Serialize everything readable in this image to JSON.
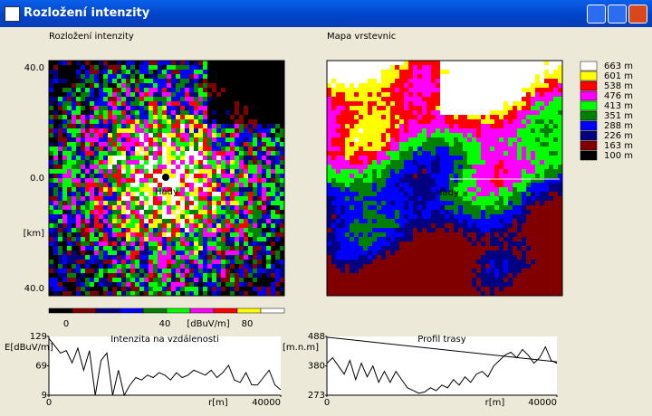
{
  "window": {
    "title": "Rozložení intenzity"
  },
  "intensity_map": {
    "title": "Rozložení intenzity",
    "y_labels": [
      "40.0",
      "0.0",
      "[km]",
      "40.0"
    ],
    "place": "Hády",
    "colorbar": {
      "colors": [
        "#000000",
        "#800000",
        "#000080",
        "#0000ff",
        "#008000",
        "#00ff00",
        "#ff00ff",
        "#ff0000",
        "#ffff00",
        "#ffffff"
      ],
      "labels": [
        "0",
        "40",
        "[dBuV/m]",
        "80"
      ]
    }
  },
  "contour_map": {
    "title": "Mapa vrstevnic",
    "place": "Hády",
    "legend": [
      {
        "label": "663 m",
        "color": "#ffffff"
      },
      {
        "label": "601 m",
        "color": "#ffff00"
      },
      {
        "label": "538 m",
        "color": "#ff0000"
      },
      {
        "label": "476 m",
        "color": "#ff00ff"
      },
      {
        "label": "413 m",
        "color": "#00ff00"
      },
      {
        "label": "351 m",
        "color": "#008000"
      },
      {
        "label": "288 m",
        "color": "#0000ff"
      },
      {
        "label": "226 m",
        "color": "#000080"
      },
      {
        "label": "163 m",
        "color": "#800000"
      },
      {
        "label": "100 m",
        "color": "#000000"
      }
    ]
  },
  "chart_data": [
    {
      "type": "line",
      "title": "Intenzita na vzdálenosti",
      "ylabel": "E[dBuV/m]",
      "xlabel": "r[m]",
      "xlim": [
        0,
        40000
      ],
      "xticks": [
        0,
        40000
      ],
      "ylim": [
        9,
        129
      ],
      "yticks": [
        9,
        69,
        129
      ],
      "series": [
        {
          "color": "#000000",
          "x": [
            0,
            1000,
            2000,
            3000,
            4000,
            5000,
            6000,
            7000,
            8000,
            9000,
            10000,
            11000,
            12000,
            13000,
            14000,
            15000,
            16000,
            17000,
            18000,
            19000,
            20000,
            21000,
            22000,
            23000,
            24000,
            25000,
            26000,
            27000,
            28000,
            29000,
            30000,
            31000,
            32000,
            33000,
            34000,
            35000,
            36000,
            37000,
            38000,
            39000,
            40000
          ],
          "values": [
            125,
            110,
            95,
            100,
            75,
            105,
            60,
            100,
            9,
            80,
            95,
            9,
            60,
            9,
            30,
            45,
            40,
            50,
            45,
            55,
            50,
            40,
            55,
            45,
            50,
            60,
            55,
            50,
            60,
            45,
            55,
            70,
            40,
            35,
            55,
            30,
            30,
            45,
            60,
            30,
            20
          ]
        }
      ]
    },
    {
      "type": "line",
      "title": "Profil trasy",
      "ylabel": "[m.n.m]",
      "xlabel": "r[m]",
      "xlim": [
        0,
        40000
      ],
      "xticks": [
        0,
        40000
      ],
      "ylim": [
        273,
        488
      ],
      "yticks": [
        273,
        380,
        488
      ],
      "series": [
        {
          "color": "#000000",
          "x": [
            0,
            1000,
            2000,
            3000,
            4000,
            5000,
            6000,
            7000,
            8000,
            9000,
            10000,
            11000,
            12000,
            13000,
            14000,
            15000,
            16000,
            17000,
            18000,
            19000,
            20000,
            21000,
            22000,
            23000,
            24000,
            25000,
            26000,
            27000,
            28000,
            29000,
            30000,
            31000,
            32000,
            33000,
            34000,
            35000,
            36000,
            37000,
            38000,
            39000,
            40000
          ],
          "values": [
            390,
            410,
            380,
            350,
            400,
            330,
            390,
            340,
            380,
            320,
            360,
            320,
            360,
            330,
            300,
            290,
            280,
            285,
            300,
            290,
            310,
            300,
            330,
            310,
            340,
            320,
            350,
            360,
            340,
            380,
            400,
            420,
            430,
            410,
            440,
            420,
            390,
            410,
            450,
            400,
            390
          ]
        },
        {
          "color": "#000000",
          "x": [
            0,
            40000
          ],
          "values": [
            485,
            395
          ]
        }
      ]
    }
  ]
}
